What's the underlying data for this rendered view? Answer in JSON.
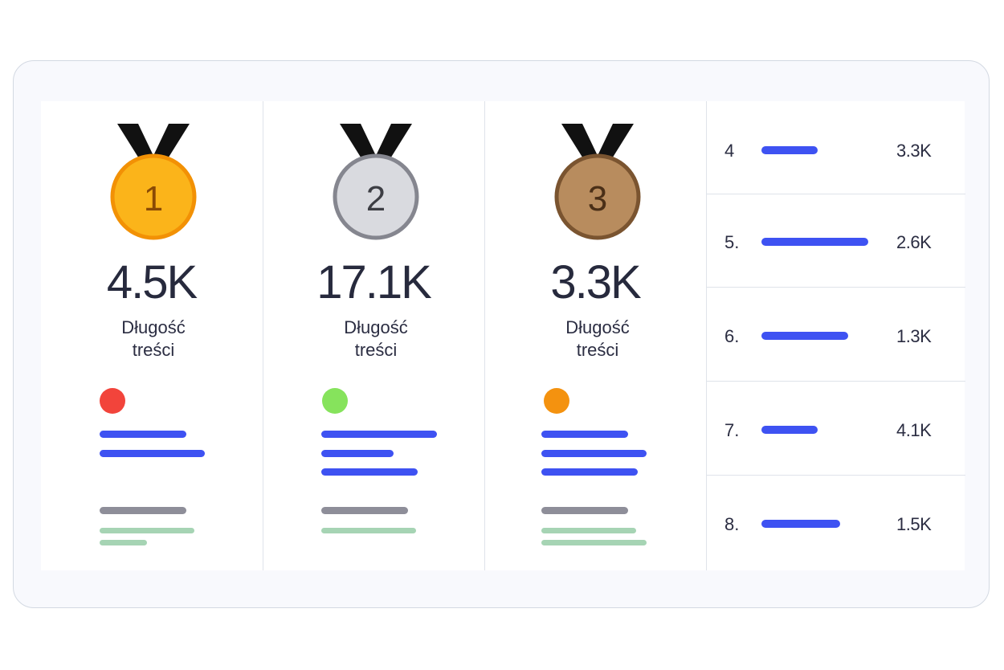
{
  "podium": [
    {
      "rank": "1",
      "value": "4.5K",
      "label": "Długość treści",
      "medal_color": "#fbb41a",
      "medal_rim": "#f29105",
      "medal_text": "#8a4a05",
      "dot_color": "#f2443b"
    },
    {
      "rank": "2",
      "value": "17.1K",
      "label": "Długość treści",
      "medal_color": "#d9dadf",
      "medal_rim": "#85868f",
      "medal_text": "#3d3e44",
      "dot_color": "#86e35c"
    },
    {
      "rank": "3",
      "value": "3.3K",
      "label": "Długość treści",
      "medal_color": "#b88c5e",
      "medal_rim": "#7a5430",
      "medal_text": "#4a2f17",
      "dot_color": "#f4920f"
    }
  ],
  "ranking": [
    {
      "rank": "4",
      "value": "3.3K"
    },
    {
      "rank": "5.",
      "value": "2.6K"
    },
    {
      "rank": "6.",
      "value": "1.3K"
    },
    {
      "rank": "7.",
      "value": "4.1K"
    },
    {
      "rank": "8.",
      "value": "1.5K"
    }
  ],
  "colors": {
    "accent_blue": "#3e52f2",
    "muted_gray": "#8e8e99",
    "muted_green": "#a6d4b4",
    "ribbon": "#111111"
  }
}
